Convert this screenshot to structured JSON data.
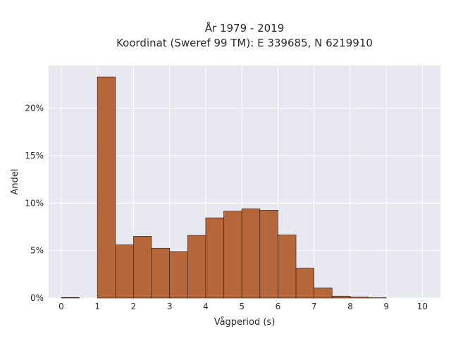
{
  "chart_data": {
    "type": "bar",
    "title": [
      "År 1979 - 2019",
      "Koordinat (Sweref 99 TM): E 339685, N 6219910"
    ],
    "xlabel": "Vågperiod (s)",
    "ylabel": "Andel",
    "xlim": [
      -0.35,
      10.5
    ],
    "ylim": [
      0,
      24.5
    ],
    "xticks": [
      0,
      1,
      2,
      3,
      4,
      5,
      6,
      7,
      8,
      9,
      10
    ],
    "xtick_labels": [
      "0",
      "1",
      "2",
      "3",
      "4",
      "5",
      "6",
      "7",
      "8",
      "9",
      "10"
    ],
    "yticks": [
      0,
      5,
      10,
      15,
      20
    ],
    "ytick_labels": [
      "0%",
      "5%",
      "10%",
      "15%",
      "20%"
    ],
    "bin_width": 0.5,
    "bins": [
      {
        "start": 0.0,
        "value": 0.05
      },
      {
        "start": 0.5,
        "value": 0.0
      },
      {
        "start": 1.0,
        "value": 23.3
      },
      {
        "start": 1.5,
        "value": 5.6
      },
      {
        "start": 2.0,
        "value": 6.5
      },
      {
        "start": 2.5,
        "value": 5.25
      },
      {
        "start": 3.0,
        "value": 4.9
      },
      {
        "start": 3.5,
        "value": 6.6
      },
      {
        "start": 4.0,
        "value": 8.45
      },
      {
        "start": 4.5,
        "value": 9.15
      },
      {
        "start": 5.0,
        "value": 9.4
      },
      {
        "start": 5.5,
        "value": 9.25
      },
      {
        "start": 6.0,
        "value": 6.65
      },
      {
        "start": 6.5,
        "value": 3.15
      },
      {
        "start": 7.0,
        "value": 1.05
      },
      {
        "start": 7.5,
        "value": 0.2
      },
      {
        "start": 8.0,
        "value": 0.1
      },
      {
        "start": 8.5,
        "value": 0.03
      },
      {
        "start": 9.0,
        "value": 0.0
      },
      {
        "start": 9.5,
        "value": 0.0
      }
    ],
    "grid": true,
    "colors": {
      "bar_fill": "#b5673a",
      "bar_stroke": "#3a2418",
      "plot_background": "#e8e8f0",
      "grid": "#ffffff"
    }
  }
}
